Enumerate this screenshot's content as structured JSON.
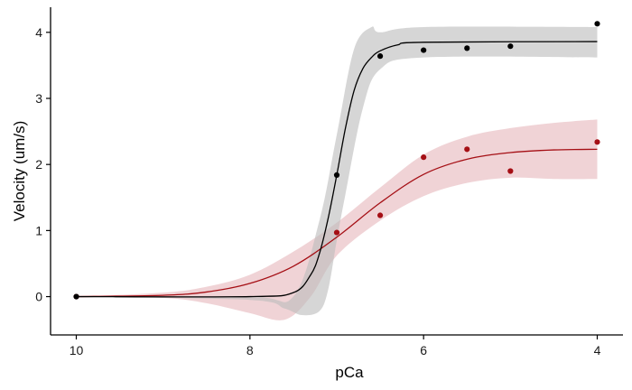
{
  "chart_data": {
    "type": "scatter",
    "xlabel": "pCa",
    "ylabel": "Velocity (um/s)",
    "xlim": [
      10,
      4
    ],
    "ylim": [
      -0.58,
      4.38
    ],
    "x_reversed": true,
    "x_ticks": [
      10,
      8,
      6,
      4
    ],
    "y_ticks": [
      0,
      1,
      2,
      3,
      4
    ],
    "x_tick_labels": [
      "10",
      "8",
      "6",
      "4"
    ],
    "y_tick_labels": [
      "0",
      "1",
      "2",
      "3",
      "4"
    ],
    "grid": false,
    "legend": "none",
    "series": [
      {
        "color": "#000000",
        "band_color": "#bdbdbd",
        "points": [
          {
            "x": 10,
            "y": 0.0
          },
          {
            "x": 7.0,
            "y": 1.84
          },
          {
            "x": 6.5,
            "y": 3.64
          },
          {
            "x": 6.0,
            "y": 3.73
          },
          {
            "x": 5.5,
            "y": 3.76
          },
          {
            "x": 5.0,
            "y": 3.79
          },
          {
            "x": 4.0,
            "y": 4.13
          }
        ],
        "fit": [
          {
            "x": 10.0,
            "y": 0.0
          },
          {
            "x": 8.0,
            "y": 0.0
          },
          {
            "x": 7.5,
            "y": 0.06
          },
          {
            "x": 7.3,
            "y": 0.33
          },
          {
            "x": 7.2,
            "y": 0.65
          },
          {
            "x": 7.1,
            "y": 1.18
          },
          {
            "x": 7.0,
            "y": 1.84
          },
          {
            "x": 6.9,
            "y": 2.55
          },
          {
            "x": 6.8,
            "y": 3.12
          },
          {
            "x": 6.7,
            "y": 3.45
          },
          {
            "x": 6.6,
            "y": 3.62
          },
          {
            "x": 6.5,
            "y": 3.72
          },
          {
            "x": 6.3,
            "y": 3.81
          },
          {
            "x": 6.0,
            "y": 3.85
          },
          {
            "x": 4.0,
            "y": 3.86
          }
        ],
        "band_upper": [
          {
            "x": 10.0,
            "y": 0.0
          },
          {
            "x": 8.0,
            "y": 0.0
          },
          {
            "x": 7.5,
            "y": 0.0
          },
          {
            "x": 7.2,
            "y": 1.15
          },
          {
            "x": 7.0,
            "y": 2.45
          },
          {
            "x": 6.8,
            "y": 3.75
          },
          {
            "x": 6.6,
            "y": 4.08
          },
          {
            "x": 6.5,
            "y": 4.0
          },
          {
            "x": 6.0,
            "y": 4.08
          },
          {
            "x": 4.0,
            "y": 4.08
          }
        ],
        "band_lower": [
          {
            "x": 4.0,
            "y": 3.62
          },
          {
            "x": 6.0,
            "y": 3.62
          },
          {
            "x": 6.5,
            "y": 3.44
          },
          {
            "x": 6.7,
            "y": 2.85
          },
          {
            "x": 6.9,
            "y": 1.55
          },
          {
            "x": 7.0,
            "y": 0.85
          },
          {
            "x": 7.1,
            "y": 0.1
          },
          {
            "x": 7.2,
            "y": -0.22
          },
          {
            "x": 7.4,
            "y": -0.28
          },
          {
            "x": 7.6,
            "y": -0.18
          },
          {
            "x": 8.0,
            "y": -0.05
          },
          {
            "x": 10.0,
            "y": 0.0
          }
        ]
      },
      {
        "color": "#a50f15",
        "band_color": "#e7b8bd",
        "points": [
          {
            "x": 10,
            "y": 0.0
          },
          {
            "x": 7.0,
            "y": 0.97
          },
          {
            "x": 6.5,
            "y": 1.23
          },
          {
            "x": 6.0,
            "y": 2.11
          },
          {
            "x": 5.5,
            "y": 2.23
          },
          {
            "x": 5.0,
            "y": 1.9
          },
          {
            "x": 4.0,
            "y": 2.34
          }
        ],
        "fit": [
          {
            "x": 10.0,
            "y": 0.0
          },
          {
            "x": 9.0,
            "y": 0.02
          },
          {
            "x": 8.5,
            "y": 0.07
          },
          {
            "x": 8.0,
            "y": 0.2
          },
          {
            "x": 7.5,
            "y": 0.46
          },
          {
            "x": 7.0,
            "y": 0.9
          },
          {
            "x": 6.5,
            "y": 1.42
          },
          {
            "x": 6.0,
            "y": 1.85
          },
          {
            "x": 5.5,
            "y": 2.08
          },
          {
            "x": 5.0,
            "y": 2.18
          },
          {
            "x": 4.5,
            "y": 2.22
          },
          {
            "x": 4.0,
            "y": 2.23
          }
        ],
        "band_upper": [
          {
            "x": 10.0,
            "y": 0.0
          },
          {
            "x": 9.0,
            "y": 0.06
          },
          {
            "x": 8.5,
            "y": 0.15
          },
          {
            "x": 8.0,
            "y": 0.33
          },
          {
            "x": 7.5,
            "y": 0.68
          },
          {
            "x": 7.0,
            "y": 1.12
          },
          {
            "x": 6.5,
            "y": 1.65
          },
          {
            "x": 6.0,
            "y": 2.15
          },
          {
            "x": 5.5,
            "y": 2.42
          },
          {
            "x": 5.0,
            "y": 2.55
          },
          {
            "x": 4.5,
            "y": 2.63
          },
          {
            "x": 4.0,
            "y": 2.68
          }
        ],
        "band_lower": [
          {
            "x": 4.0,
            "y": 1.78
          },
          {
            "x": 4.5,
            "y": 1.78
          },
          {
            "x": 5.0,
            "y": 1.8
          },
          {
            "x": 5.5,
            "y": 1.72
          },
          {
            "x": 6.0,
            "y": 1.52
          },
          {
            "x": 6.5,
            "y": 1.15
          },
          {
            "x": 7.0,
            "y": 0.62
          },
          {
            "x": 7.3,
            "y": 0.0
          },
          {
            "x": 7.6,
            "y": -0.35
          },
          {
            "x": 8.0,
            "y": -0.25
          },
          {
            "x": 8.5,
            "y": -0.1
          },
          {
            "x": 9.0,
            "y": -0.02
          },
          {
            "x": 10.0,
            "y": 0.0
          }
        ]
      }
    ]
  }
}
